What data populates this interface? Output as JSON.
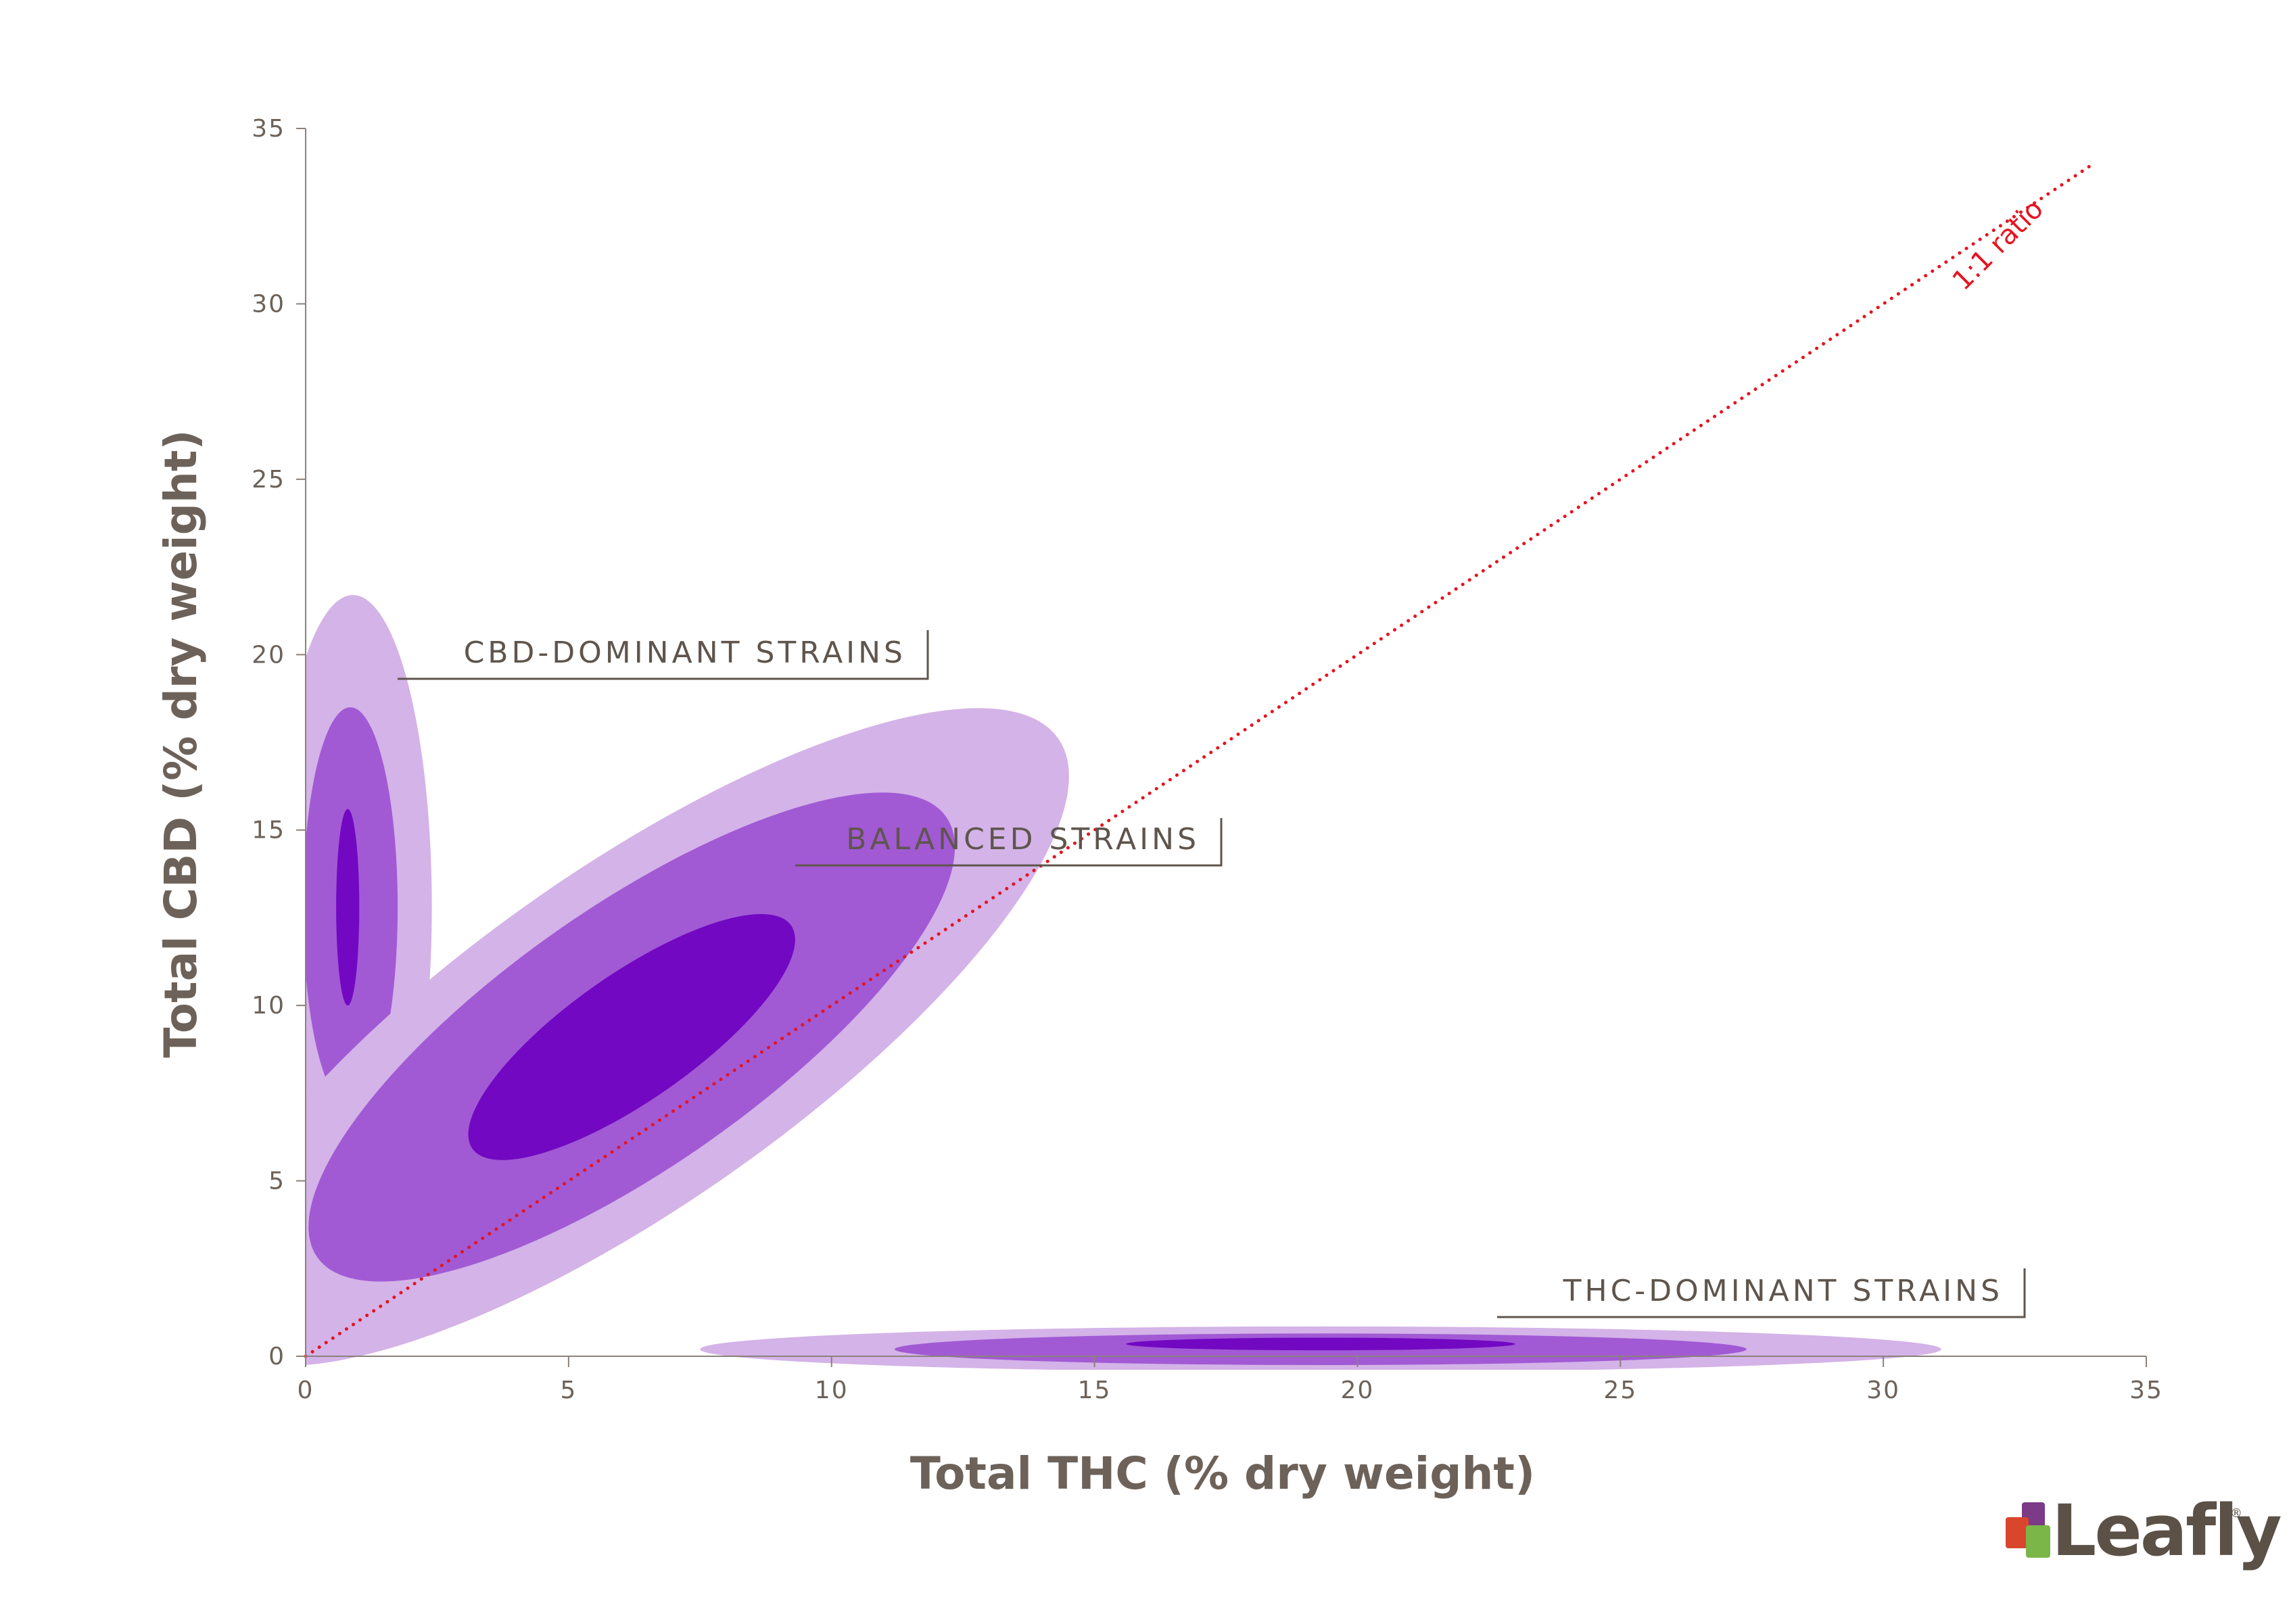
{
  "chart_data": {
    "type": "contour",
    "xlabel": "Total THC (% dry weight)",
    "ylabel": "Total CBD (% dry weight)",
    "xlim": [
      0,
      35
    ],
    "ylim": [
      0,
      35
    ],
    "x_ticks": [
      0,
      5,
      10,
      15,
      20,
      25,
      30,
      35
    ],
    "y_ticks": [
      0,
      5,
      10,
      15,
      20,
      25,
      30,
      35
    ],
    "grid": false,
    "colors": {
      "outer": "#d4b3e8",
      "middle": "#a15ad4",
      "inner": "#7208c2",
      "reference_line": "#e5141f",
      "text": "#6d6259"
    },
    "clusters": [
      {
        "label": "CBD-DOMINANT STRAINS",
        "contours": [
          {
            "level": "outer",
            "cx": 0.9,
            "cy": 12.8,
            "rx": 1.5,
            "ry": 8.9,
            "angle": 0
          },
          {
            "level": "middle",
            "cx": 0.85,
            "cy": 12.8,
            "rx": 0.9,
            "ry": 5.7,
            "angle": 0
          },
          {
            "level": "inner",
            "cx": 0.8,
            "cy": 12.8,
            "rx": 0.22,
            "ry": 2.8,
            "angle": 0
          }
        ]
      },
      {
        "label": "BALANCED STRAINS",
        "contours": [
          {
            "level": "outer",
            "cx": 6.2,
            "cy": 9.1,
            "rx": 9.9,
            "ry": 4.8,
            "angle": 35
          },
          {
            "level": "middle",
            "cx": 6.2,
            "cy": 9.1,
            "rx": 7.3,
            "ry": 3.7,
            "angle": 35
          },
          {
            "level": "inner",
            "cx": 6.2,
            "cy": 9.1,
            "rx": 3.7,
            "ry": 1.8,
            "angle": 35
          }
        ]
      },
      {
        "label": "THC-DOMINANT STRAINS",
        "contours": [
          {
            "level": "outer",
            "cx": 19.3,
            "cy": 0.2,
            "rx": 11.8,
            "ry": 0.65,
            "angle": 0
          },
          {
            "level": "middle",
            "cx": 19.3,
            "cy": 0.2,
            "rx": 8.1,
            "ry": 0.45,
            "angle": 0
          },
          {
            "level": "inner",
            "cx": 19.3,
            "cy": 0.35,
            "rx": 3.7,
            "ry": 0.18,
            "angle": 0
          }
        ]
      }
    ],
    "reference_line": {
      "label": "1:1 ratio",
      "x": [
        0,
        34
      ],
      "y": [
        0,
        34
      ],
      "style": "dotted"
    }
  },
  "logo": {
    "text": "Leafly",
    "mark": "®"
  }
}
